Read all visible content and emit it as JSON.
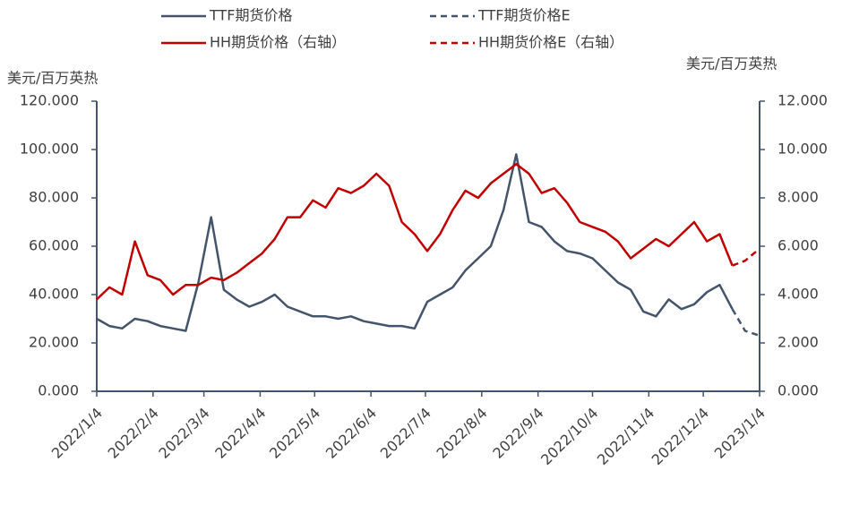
{
  "chart_data": {
    "type": "line",
    "y_label": "美元/百万英热",
    "y2_label": "美元/百万英热",
    "xlim": [
      "2022/1/4",
      "2023/1/4"
    ],
    "xticks": [
      "2022/1/4",
      "2022/2/4",
      "2022/3/4",
      "2022/4/4",
      "2022/5/4",
      "2022/6/4",
      "2022/7/4",
      "2022/8/4",
      "2022/9/4",
      "2022/10/4",
      "2022/11/4",
      "2022/12/4",
      "2023/1/4"
    ],
    "ylim": [
      0,
      120
    ],
    "yticks": [
      {
        "value": 0,
        "label": "0.000"
      },
      {
        "value": 20,
        "label": "20.000"
      },
      {
        "value": 40,
        "label": "40.000"
      },
      {
        "value": 60,
        "label": "60.000"
      },
      {
        "value": 80,
        "label": "80.000"
      },
      {
        "value": 100,
        "label": "100.000"
      },
      {
        "value": 120,
        "label": "120.000"
      }
    ],
    "y2lim": [
      0,
      12
    ],
    "y2ticks": [
      {
        "value": 0,
        "label": "0.000"
      },
      {
        "value": 2,
        "label": "2.000"
      },
      {
        "value": 4,
        "label": "4.000"
      },
      {
        "value": 6,
        "label": "6.000"
      },
      {
        "value": 8,
        "label": "8.000"
      },
      {
        "value": 10,
        "label": "10.000"
      },
      {
        "value": 12,
        "label": "12.000"
      }
    ],
    "series": [
      {
        "name": "TTF期货价格",
        "color": "#44546a",
        "dash": false,
        "x": [
          "2022/1/4",
          "2022/1/11",
          "2022/1/18",
          "2022/1/25",
          "2022/2/1",
          "2022/2/8",
          "2022/2/15",
          "2022/2/22",
          "2022/3/1",
          "2022/3/8",
          "2022/3/15",
          "2022/3/22",
          "2022/3/29",
          "2022/4/5",
          "2022/4/12",
          "2022/4/19",
          "2022/4/26",
          "2022/5/3",
          "2022/5/10",
          "2022/5/17",
          "2022/5/24",
          "2022/5/31",
          "2022/6/7",
          "2022/6/14",
          "2022/6/21",
          "2022/6/28",
          "2022/7/5",
          "2022/7/12",
          "2022/7/19",
          "2022/7/26",
          "2022/8/2",
          "2022/8/9",
          "2022/8/16",
          "2022/8/23",
          "2022/8/30",
          "2022/9/6",
          "2022/9/13",
          "2022/9/20",
          "2022/9/27",
          "2022/10/4",
          "2022/10/11",
          "2022/10/18",
          "2022/10/25",
          "2022/11/1",
          "2022/11/8",
          "2022/11/15",
          "2022/11/22",
          "2022/11/29",
          "2022/12/6",
          "2022/12/13",
          "2022/12/20"
        ],
        "values": [
          30,
          27,
          26,
          30,
          29,
          27,
          26,
          25,
          45,
          72,
          42,
          38,
          35,
          37,
          40,
          35,
          33,
          31,
          31,
          30,
          31,
          29,
          28,
          27,
          27,
          26,
          37,
          40,
          43,
          50,
          55,
          60,
          75,
          98,
          70,
          68,
          62,
          58,
          57,
          55,
          50,
          45,
          42,
          33,
          31,
          38,
          34,
          36,
          41,
          44,
          34
        ]
      },
      {
        "name": "TTF期货价格E",
        "color": "#44546a",
        "dash": true,
        "x": [
          "2022/12/20",
          "2022/12/27",
          "2023/1/4"
        ],
        "values": [
          34,
          25,
          23
        ]
      },
      {
        "name": "HH期货价格（右轴）",
        "color": "#c00000",
        "dash": false,
        "axis": "y2",
        "x": [
          "2022/1/4",
          "2022/1/11",
          "2022/1/18",
          "2022/1/25",
          "2022/2/1",
          "2022/2/8",
          "2022/2/15",
          "2022/2/22",
          "2022/3/1",
          "2022/3/8",
          "2022/3/15",
          "2022/3/22",
          "2022/3/29",
          "2022/4/5",
          "2022/4/12",
          "2022/4/19",
          "2022/4/26",
          "2022/5/3",
          "2022/5/10",
          "2022/5/17",
          "2022/5/24",
          "2022/5/31",
          "2022/6/7",
          "2022/6/14",
          "2022/6/21",
          "2022/6/28",
          "2022/7/5",
          "2022/7/12",
          "2022/7/19",
          "2022/7/26",
          "2022/8/2",
          "2022/8/9",
          "2022/8/16",
          "2022/8/23",
          "2022/8/30",
          "2022/9/6",
          "2022/9/13",
          "2022/9/20",
          "2022/9/27",
          "2022/10/4",
          "2022/10/11",
          "2022/10/18",
          "2022/10/25",
          "2022/11/1",
          "2022/11/8",
          "2022/11/15",
          "2022/11/22",
          "2022/11/29",
          "2022/12/6",
          "2022/12/13",
          "2022/12/20"
        ],
        "values": [
          3.8,
          4.3,
          4.0,
          6.2,
          4.8,
          4.6,
          4.0,
          4.4,
          4.4,
          4.7,
          4.6,
          4.9,
          5.3,
          5.7,
          6.3,
          7.2,
          7.2,
          7.9,
          7.6,
          8.4,
          8.2,
          8.5,
          9.0,
          8.5,
          7.0,
          6.5,
          5.8,
          6.5,
          7.5,
          8.3,
          8.0,
          8.6,
          9.0,
          9.4,
          9.0,
          8.2,
          8.4,
          7.8,
          7.0,
          6.8,
          6.6,
          6.2,
          5.5,
          5.9,
          6.3,
          6.0,
          6.5,
          7.0,
          6.2,
          6.5,
          5.2
        ]
      },
      {
        "name": "HH期货价格E（右轴）",
        "color": "#c00000",
        "dash": true,
        "axis": "y2",
        "x": [
          "2022/12/20",
          "2022/12/27",
          "2023/1/4"
        ],
        "values": [
          5.2,
          5.4,
          5.9
        ]
      }
    ]
  }
}
